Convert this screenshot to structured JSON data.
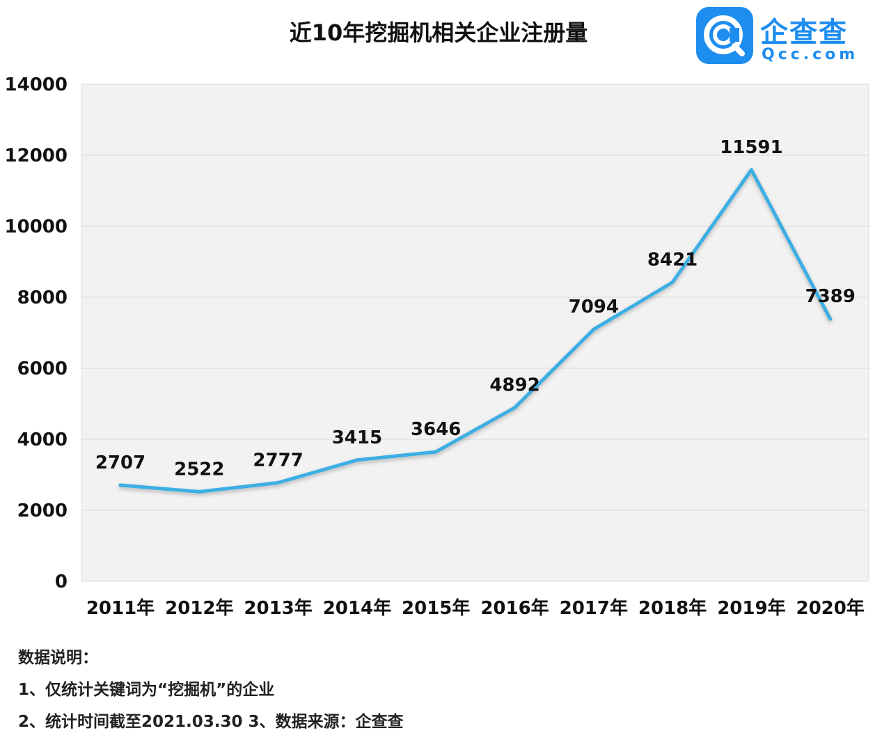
{
  "title": "近10年挖掘机相关企业注册量",
  "logo": {
    "name": "企查查",
    "domain": "Qcc.com",
    "brand_color": "#1d8df0"
  },
  "chart_data": {
    "type": "line",
    "title": "近10年挖掘机相关企业注册量",
    "categories": [
      "2011年",
      "2012年",
      "2013年",
      "2014年",
      "2015年",
      "2016年",
      "2017年",
      "2018年",
      "2019年",
      "2020年"
    ],
    "series": [
      {
        "values": [
          2707,
          2522,
          2777,
          3415,
          3646,
          4892,
          7094,
          8421,
          11591,
          7389
        ]
      }
    ],
    "ylim": [
      0,
      14000
    ],
    "yticks": [
      "0",
      "2000",
      "4000",
      "6000",
      "8000",
      "10000",
      "12000",
      "14000"
    ],
    "data_labels": [
      "2707",
      "2522",
      "2777",
      "3415",
      "3646",
      "4892",
      "7094",
      "8421",
      "11591",
      "7389"
    ],
    "xlabel": "",
    "ylabel": "",
    "grid": true,
    "line_color": "#3daee3",
    "plot_background": "#f2f2f2"
  },
  "notes": {
    "heading": "数据说明：",
    "line1": "1、仅统计关键词为“挖掘机”的企业",
    "line2": "2、统计时间截至2021.03.30    3、数据来源：企查查"
  }
}
